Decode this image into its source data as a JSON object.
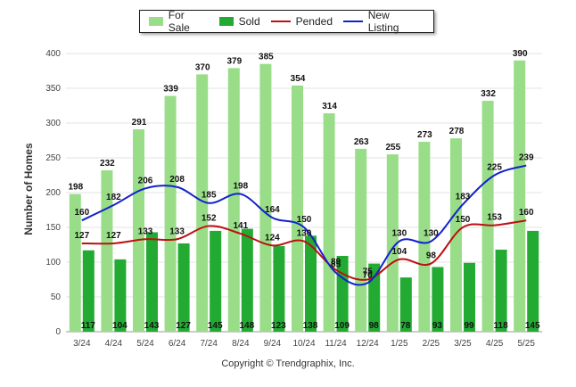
{
  "legend": {
    "for_sale": "For Sale",
    "sold": "Sold",
    "pended": "Pended",
    "new_listing": "New Listing"
  },
  "copyright": "Copyright © Trendgraphix, Inc.",
  "colors": {
    "for_sale": "#99dd88",
    "sold": "#22aa33",
    "pended": "#bb1111",
    "new_listing": "#1122cc"
  },
  "chart_data": {
    "type": "bar",
    "title": "",
    "xlabel": "",
    "ylabel": "Number of Homes",
    "ylim": [
      0,
      400
    ],
    "yticks": [
      0,
      50,
      100,
      150,
      200,
      250,
      300,
      350,
      400
    ],
    "grid": true,
    "legend_position": "top",
    "categories": [
      "3/24",
      "4/24",
      "5/24",
      "6/24",
      "7/24",
      "8/24",
      "9/24",
      "10/24",
      "11/24",
      "12/24",
      "1/25",
      "2/25",
      "3/25",
      "4/25",
      "5/25"
    ],
    "series": [
      {
        "name": "For Sale",
        "type": "bar",
        "values": [
          198,
          232,
          291,
          339,
          370,
          379,
          385,
          354,
          314,
          263,
          255,
          273,
          278,
          332,
          390
        ]
      },
      {
        "name": "Sold",
        "type": "bar",
        "values": [
          117,
          104,
          143,
          127,
          145,
          148,
          123,
          138,
          109,
          98,
          78,
          93,
          99,
          118,
          145
        ]
      },
      {
        "name": "Pended",
        "type": "line",
        "values": [
          127,
          127,
          133,
          133,
          152,
          141,
          124,
          130,
          89,
          75,
          104,
          98,
          150,
          153,
          160
        ]
      },
      {
        "name": "New Listing",
        "type": "line",
        "values": [
          160,
          182,
          206,
          208,
          185,
          198,
          164,
          150,
          85,
          70,
          130,
          130,
          183,
          225,
          239
        ]
      }
    ]
  }
}
